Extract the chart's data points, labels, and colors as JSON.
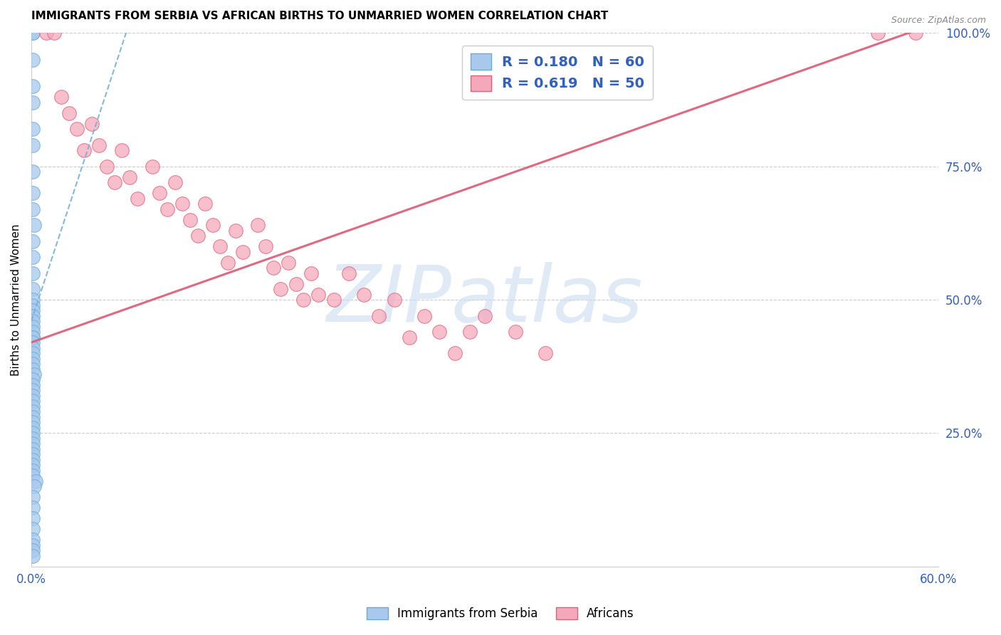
{
  "title": "IMMIGRANTS FROM SERBIA VS AFRICAN BIRTHS TO UNMARRIED WOMEN CORRELATION CHART",
  "source": "Source: ZipAtlas.com",
  "ylabel": "Births to Unmarried Women",
  "legend_label_1": "Immigrants from Serbia",
  "legend_label_2": "Africans",
  "R1": 0.18,
  "N1": 60,
  "R2": 0.619,
  "N2": 50,
  "color_serbia": "#a8c8ec",
  "color_serbia_edge": "#6aaad8",
  "color_africa": "#f5a8bc",
  "color_africa_edge": "#e0607a",
  "trendline_serbia_color": "#7ab0d8",
  "trendline_africa_color": "#e0607a",
  "axis_label_color": "#3060c0",
  "watermark_color": "#ccddf0",
  "watermark_text": "ZIPatlas",
  "xmin": 0.0,
  "xmax": 0.6,
  "ymin": 0.0,
  "ymax": 1.0,
  "y_ticks_right": [
    0.25,
    0.5,
    0.75,
    1.0
  ],
  "y_tick_labels_right": [
    "25.0%",
    "50.0%",
    "75.0%",
    "100.0%"
  ],
  "serbia_x": [
    0.001,
    0.001,
    0.001,
    0.001,
    0.001,
    0.001,
    0.001,
    0.001,
    0.001,
    0.001,
    0.002,
    0.001,
    0.001,
    0.001,
    0.001,
    0.001,
    0.001,
    0.001,
    0.001,
    0.001,
    0.001,
    0.001,
    0.001,
    0.001,
    0.001,
    0.001,
    0.001,
    0.001,
    0.001,
    0.001,
    0.002,
    0.001,
    0.001,
    0.001,
    0.001,
    0.001,
    0.001,
    0.001,
    0.001,
    0.001,
    0.001,
    0.001,
    0.001,
    0.001,
    0.001,
    0.001,
    0.001,
    0.001,
    0.001,
    0.001,
    0.003,
    0.002,
    0.001,
    0.001,
    0.001,
    0.001,
    0.001,
    0.001,
    0.001,
    0.001
  ],
  "serbia_y": [
    1.0,
    1.0,
    0.95,
    0.9,
    0.87,
    0.82,
    0.79,
    0.74,
    0.7,
    0.67,
    0.64,
    0.61,
    0.58,
    0.55,
    0.52,
    0.5,
    0.49,
    0.48,
    0.47,
    0.46,
    0.45,
    0.44,
    0.43,
    0.43,
    0.42,
    0.41,
    0.4,
    0.39,
    0.38,
    0.37,
    0.36,
    0.35,
    0.34,
    0.33,
    0.32,
    0.31,
    0.3,
    0.29,
    0.28,
    0.27,
    0.26,
    0.25,
    0.24,
    0.23,
    0.22,
    0.21,
    0.2,
    0.19,
    0.18,
    0.17,
    0.16,
    0.15,
    0.13,
    0.11,
    0.09,
    0.07,
    0.05,
    0.04,
    0.03,
    0.02
  ],
  "africa_x": [
    0.01,
    0.015,
    0.02,
    0.025,
    0.03,
    0.035,
    0.04,
    0.045,
    0.05,
    0.055,
    0.06,
    0.065,
    0.07,
    0.08,
    0.085,
    0.09,
    0.095,
    0.1,
    0.105,
    0.11,
    0.115,
    0.12,
    0.125,
    0.13,
    0.135,
    0.14,
    0.15,
    0.155,
    0.16,
    0.165,
    0.17,
    0.175,
    0.18,
    0.185,
    0.19,
    0.2,
    0.21,
    0.22,
    0.23,
    0.24,
    0.25,
    0.26,
    0.27,
    0.28,
    0.29,
    0.3,
    0.32,
    0.34,
    0.56,
    0.585
  ],
  "africa_y": [
    1.0,
    1.0,
    0.88,
    0.85,
    0.82,
    0.78,
    0.83,
    0.79,
    0.75,
    0.72,
    0.78,
    0.73,
    0.69,
    0.75,
    0.7,
    0.67,
    0.72,
    0.68,
    0.65,
    0.62,
    0.68,
    0.64,
    0.6,
    0.57,
    0.63,
    0.59,
    0.64,
    0.6,
    0.56,
    0.52,
    0.57,
    0.53,
    0.5,
    0.55,
    0.51,
    0.5,
    0.55,
    0.51,
    0.47,
    0.5,
    0.43,
    0.47,
    0.44,
    0.4,
    0.44,
    0.47,
    0.44,
    0.4,
    1.0,
    1.0
  ],
  "trendline_africa_x0": 0.0,
  "trendline_africa_x1": 0.6,
  "trendline_africa_y0": 0.42,
  "trendline_africa_y1": 1.02,
  "trendline_serbia_x0": 0.0,
  "trendline_serbia_x1": 0.065,
  "trendline_serbia_y0": 0.46,
  "trendline_serbia_y1": 1.02
}
